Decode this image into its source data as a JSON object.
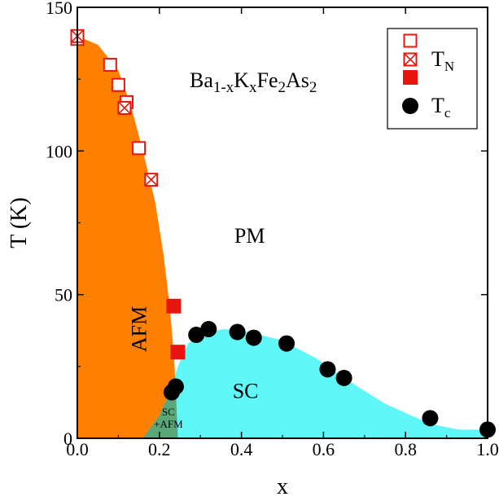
{
  "chart_data": {
    "type": "scatter",
    "title": "",
    "formula": {
      "parts": [
        {
          "t": "Ba",
          "sub": false
        },
        {
          "t": "1-x",
          "sub": true
        },
        {
          "t": "K",
          "sub": false
        },
        {
          "t": "x",
          "sub": true
        },
        {
          "t": "Fe",
          "sub": false
        },
        {
          "t": "2",
          "sub": true
        },
        {
          "t": "As",
          "sub": false
        },
        {
          "t": "2",
          "sub": true
        }
      ]
    },
    "xlabel": "x",
    "ylabel": "T (K)",
    "xlim": [
      0.0,
      1.0
    ],
    "ylim": [
      0,
      150
    ],
    "xticks": [
      "0.0",
      "0.2",
      "0.4",
      "0.6",
      "0.8",
      "1.0"
    ],
    "xtick_values": [
      0.0,
      0.2,
      0.4,
      0.6,
      0.8,
      1.0
    ],
    "yticks": [
      "0",
      "50",
      "100",
      "150"
    ],
    "ytick_values": [
      0,
      50,
      100,
      150
    ],
    "regions": [
      {
        "label": "AFM",
        "color": "#ff8000"
      },
      {
        "label": "SC",
        "color": "#5ff7f7"
      },
      {
        "label": "SC\n+AFM",
        "color": "#5aa87a"
      },
      {
        "label": "PM",
        "color": "#ffffff"
      }
    ],
    "afm_boundary": [
      [
        0.0,
        140
      ],
      [
        0.05,
        137
      ],
      [
        0.1,
        128
      ],
      [
        0.13,
        116
      ],
      [
        0.16,
        100
      ],
      [
        0.19,
        82
      ],
      [
        0.21,
        64
      ],
      [
        0.225,
        46
      ],
      [
        0.235,
        30
      ],
      [
        0.24,
        17
      ],
      [
        0.245,
        0
      ]
    ],
    "sc_dome": [
      [
        0.16,
        0
      ],
      [
        0.2,
        8
      ],
      [
        0.225,
        16
      ],
      [
        0.245,
        25
      ],
      [
        0.27,
        33
      ],
      [
        0.31,
        37
      ],
      [
        0.36,
        38
      ],
      [
        0.42,
        37
      ],
      [
        0.5,
        34
      ],
      [
        0.58,
        28
      ],
      [
        0.65,
        21
      ],
      [
        0.75,
        12
      ],
      [
        0.86,
        5
      ],
      [
        0.93,
        3
      ],
      [
        1.0,
        3
      ],
      [
        1.0,
        0
      ]
    ],
    "series": [
      {
        "legend": "",
        "marker": "open-square",
        "color": "#e8150f",
        "x": [
          0.0,
          0.08,
          0.1,
          0.12,
          0.15
        ],
        "y": [
          139,
          130,
          123,
          117,
          101
        ]
      },
      {
        "legend": "T_N",
        "marker": "crossed-square",
        "color": "#e8150f",
        "x": [
          0.0,
          0.115,
          0.18
        ],
        "y": [
          140,
          115,
          90
        ]
      },
      {
        "legend": "",
        "marker": "filled-square",
        "color": "#e8150f",
        "x": [
          0.235,
          0.245
        ],
        "y": [
          46,
          30
        ]
      },
      {
        "legend": "T_c",
        "marker": "filled-circle",
        "color": "#000000",
        "x": [
          0.23,
          0.24,
          0.29,
          0.32,
          0.39,
          0.43,
          0.51,
          0.61,
          0.65,
          0.86,
          1.0
        ],
        "y": [
          16,
          18,
          36,
          38,
          37,
          35,
          33,
          24,
          21,
          7,
          3
        ]
      }
    ],
    "legend": {
      "position": "top-right",
      "entries": [
        {
          "marker": "open-square",
          "main": "",
          "sub": ""
        },
        {
          "marker": "crossed-square",
          "main": "T",
          "sub": "N"
        },
        {
          "marker": "filled-square",
          "main": "",
          "sub": ""
        },
        {
          "marker": "filled-circle",
          "main": "T",
          "sub": "c"
        }
      ]
    }
  }
}
